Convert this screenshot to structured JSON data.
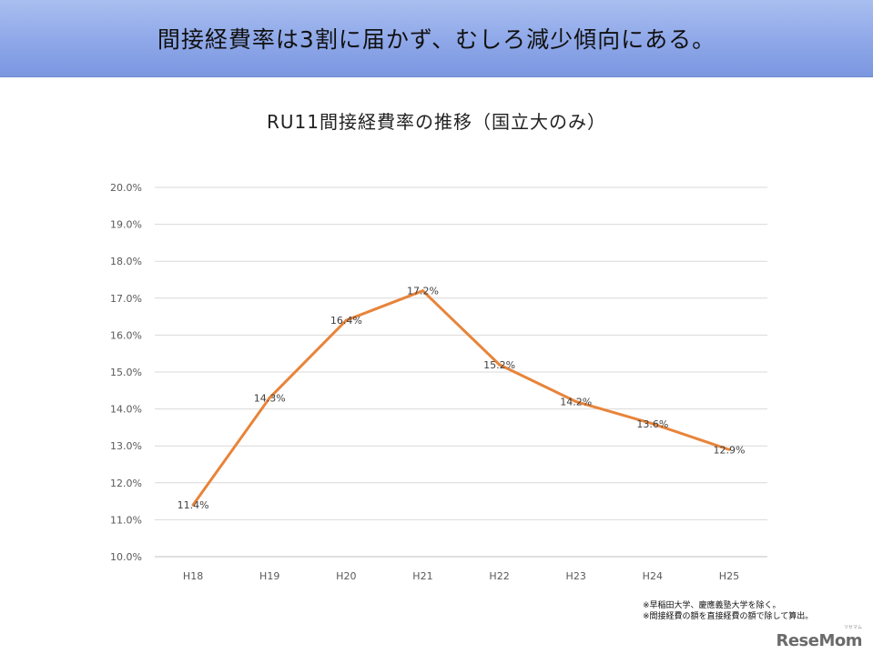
{
  "banner": {
    "text": "間接経費率は3割に届かず、むしろ減少傾向にある。"
  },
  "chart_data": {
    "type": "line",
    "title": "RU11間接経費率の推移（国立大のみ）",
    "categories": [
      "H18",
      "H19",
      "H20",
      "H21",
      "H22",
      "H23",
      "H24",
      "H25"
    ],
    "series": [
      {
        "values": [
          11.4,
          14.3,
          16.4,
          17.2,
          15.2,
          14.2,
          13.6,
          12.9
        ],
        "labels": [
          "11.4%",
          "14.3%",
          "16.4%",
          "17.2%",
          "15.2%",
          "14.2%",
          "13.6%",
          "12.9%"
        ],
        "color": "#e8843a"
      }
    ],
    "yticks": [
      "10.0%",
      "11.0%",
      "12.0%",
      "13.0%",
      "14.0%",
      "15.0%",
      "16.0%",
      "17.0%",
      "18.0%",
      "19.0%",
      "20.0%"
    ],
    "ylim": [
      10,
      20
    ],
    "grid": true,
    "legend": "none"
  },
  "notes": {
    "line1": "※早稲田大学、慶應義塾大学を除く。",
    "line2": "※間接経費の額を直接経費の額で除して算出。"
  },
  "watermark": {
    "logo": "ReseMom",
    "sub": "リセマム"
  }
}
